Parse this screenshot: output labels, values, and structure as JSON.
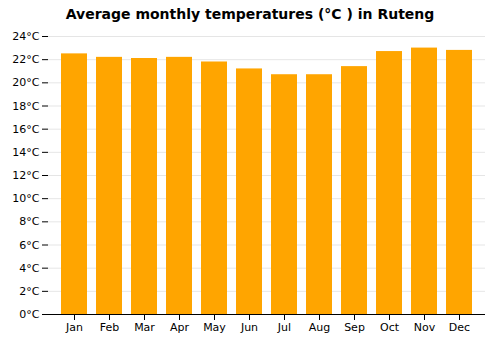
{
  "chart_data": {
    "type": "bar",
    "title": "Average monthly temperatures (°C ) in Ruteng",
    "categories": [
      "Jan",
      "Feb",
      "Mar",
      "Apr",
      "May",
      "Jun",
      "Jul",
      "Aug",
      "Sep",
      "Oct",
      "Nov",
      "Dec"
    ],
    "values": [
      22.5,
      22.2,
      22.1,
      22.2,
      21.8,
      21.2,
      20.7,
      20.7,
      21.4,
      22.7,
      23.0,
      22.8
    ],
    "color": "#FFA500",
    "ylim": [
      0,
      24
    ],
    "yticks": [
      {
        "value": 0,
        "label": "0°C"
      },
      {
        "value": 2,
        "label": "2°C"
      },
      {
        "value": 4,
        "label": "4°C"
      },
      {
        "value": 6,
        "label": "6°C"
      },
      {
        "value": 8,
        "label": "8°C"
      },
      {
        "value": 10,
        "label": "10°C"
      },
      {
        "value": 12,
        "label": "12°C"
      },
      {
        "value": 14,
        "label": "14°C"
      },
      {
        "value": 16,
        "label": "16°C"
      },
      {
        "value": 18,
        "label": "18°C"
      },
      {
        "value": 20,
        "label": "20°C"
      },
      {
        "value": 22,
        "label": "22°C"
      },
      {
        "value": 24,
        "label": "24°C"
      }
    ],
    "grid": true
  }
}
